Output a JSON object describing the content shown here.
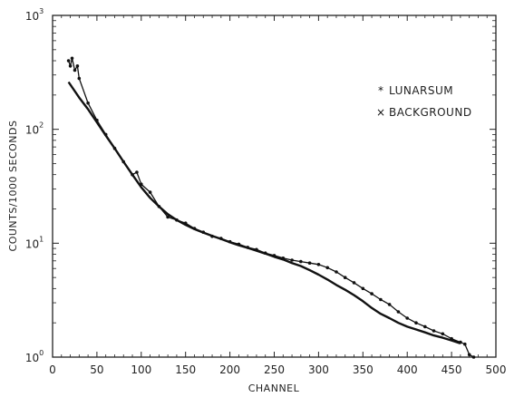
{
  "chart_data": {
    "type": "scatter",
    "xlabel": "CHANNEL",
    "ylabel": "COUNTS/1000 SECONDS",
    "xlim": [
      0,
      500
    ],
    "ylim": [
      1,
      1000
    ],
    "yscale": "log",
    "x_ticks": [
      "0",
      "50",
      "100",
      "150",
      "200",
      "250",
      "300",
      "350",
      "400",
      "450",
      "500"
    ],
    "y_ticks": [
      {
        "base": "10",
        "exp": "0"
      },
      {
        "base": "10",
        "exp": "1"
      },
      {
        "base": "10",
        "exp": "2"
      },
      {
        "base": "10",
        "exp": "3"
      }
    ],
    "grid": false,
    "legend_position": "top-right",
    "series": [
      {
        "name": "LUNARSUM",
        "marker": "*",
        "style": "points",
        "color": "#111111",
        "points": [
          [
            18,
            400
          ],
          [
            20,
            360
          ],
          [
            22,
            420
          ],
          [
            25,
            330
          ],
          [
            28,
            360
          ],
          [
            30,
            280
          ],
          [
            40,
            170
          ],
          [
            50,
            120
          ],
          [
            60,
            90
          ],
          [
            70,
            68
          ],
          [
            80,
            52
          ],
          [
            90,
            40
          ],
          [
            95,
            42
          ],
          [
            100,
            33
          ],
          [
            110,
            28
          ],
          [
            120,
            21
          ],
          [
            130,
            17
          ],
          [
            140,
            16
          ],
          [
            150,
            15
          ],
          [
            160,
            13.5
          ],
          [
            170,
            12.5
          ],
          [
            180,
            11.5
          ],
          [
            190,
            11
          ],
          [
            200,
            10.3
          ],
          [
            210,
            9.8
          ],
          [
            220,
            9.2
          ],
          [
            230,
            8.8
          ],
          [
            240,
            8.2
          ],
          [
            250,
            7.8
          ],
          [
            260,
            7.4
          ],
          [
            270,
            7.1
          ],
          [
            280,
            6.9
          ],
          [
            290,
            6.7
          ],
          [
            300,
            6.5
          ],
          [
            310,
            6.1
          ],
          [
            320,
            5.6
          ],
          [
            330,
            5.0
          ],
          [
            340,
            4.5
          ],
          [
            350,
            4.0
          ],
          [
            360,
            3.6
          ],
          [
            370,
            3.2
          ],
          [
            380,
            2.9
          ],
          [
            390,
            2.5
          ],
          [
            400,
            2.2
          ],
          [
            410,
            2.0
          ],
          [
            420,
            1.85
          ],
          [
            430,
            1.7
          ],
          [
            440,
            1.6
          ],
          [
            450,
            1.45
          ],
          [
            460,
            1.35
          ],
          [
            465,
            1.3
          ],
          [
            470,
            1.05
          ],
          [
            475,
            1.0
          ]
        ]
      },
      {
        "name": "BACKGROUND",
        "marker": "×",
        "style": "line",
        "color": "#111111",
        "points": [
          [
            18,
            260
          ],
          [
            30,
            190
          ],
          [
            40,
            150
          ],
          [
            50,
            115
          ],
          [
            60,
            88
          ],
          [
            70,
            68
          ],
          [
            80,
            52
          ],
          [
            90,
            40
          ],
          [
            100,
            31
          ],
          [
            110,
            25
          ],
          [
            120,
            21
          ],
          [
            130,
            18
          ],
          [
            140,
            16
          ],
          [
            150,
            14.5
          ],
          [
            160,
            13.3
          ],
          [
            170,
            12.4
          ],
          [
            180,
            11.6
          ],
          [
            190,
            10.9
          ],
          [
            200,
            10.2
          ],
          [
            210,
            9.6
          ],
          [
            220,
            9.1
          ],
          [
            230,
            8.6
          ],
          [
            240,
            8.1
          ],
          [
            250,
            7.6
          ],
          [
            260,
            7.2
          ],
          [
            270,
            6.7
          ],
          [
            280,
            6.3
          ],
          [
            290,
            5.8
          ],
          [
            300,
            5.3
          ],
          [
            310,
            4.8
          ],
          [
            320,
            4.3
          ],
          [
            330,
            3.9
          ],
          [
            340,
            3.5
          ],
          [
            350,
            3.1
          ],
          [
            360,
            2.7
          ],
          [
            370,
            2.4
          ],
          [
            380,
            2.2
          ],
          [
            390,
            2.0
          ],
          [
            400,
            1.85
          ],
          [
            410,
            1.75
          ],
          [
            420,
            1.65
          ],
          [
            430,
            1.55
          ],
          [
            440,
            1.48
          ],
          [
            450,
            1.4
          ],
          [
            460,
            1.32
          ]
        ]
      }
    ]
  }
}
